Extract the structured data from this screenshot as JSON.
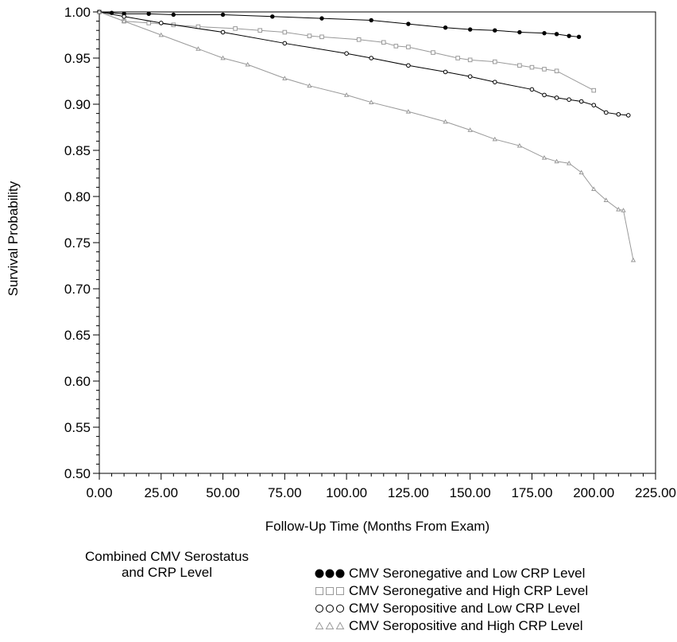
{
  "chart_data": {
    "type": "line",
    "xlabel": "Follow-Up Time (Months From Exam)",
    "ylabel": "Survival Probability",
    "xlim": [
      0,
      225
    ],
    "ylim": [
      0.5,
      1.0
    ],
    "xticks": [
      "0.00",
      "25.00",
      "50.00",
      "75.00",
      "100.00",
      "125.00",
      "150.00",
      "175.00",
      "200.00",
      "225.00"
    ],
    "yticks": [
      "0.50",
      "0.55",
      "0.60",
      "0.65",
      "0.70",
      "0.75",
      "0.80",
      "0.85",
      "0.90",
      "0.95",
      "1.00"
    ],
    "grid": false,
    "legend_title": [
      "Combined CMV Serostatus",
      "and CRP Level"
    ],
    "legend_position": "bottom",
    "series": [
      {
        "name": "CMV Seronegative and Low CRP Level",
        "color": "#000000",
        "marker": "filled-circle",
        "x": [
          0,
          5,
          10,
          20,
          30,
          50,
          70,
          90,
          110,
          125,
          140,
          150,
          160,
          170,
          180,
          185,
          190,
          194
        ],
        "y": [
          1.0,
          0.999,
          0.998,
          0.998,
          0.997,
          0.997,
          0.995,
          0.993,
          0.991,
          0.987,
          0.983,
          0.981,
          0.98,
          0.978,
          0.977,
          0.976,
          0.974,
          0.973
        ]
      },
      {
        "name": "CMV Seronegative and High CRP Level",
        "color": "#999999",
        "marker": "open-square",
        "x": [
          0,
          10,
          20,
          30,
          40,
          55,
          65,
          75,
          85,
          90,
          105,
          115,
          120,
          125,
          135,
          145,
          150,
          160,
          170,
          175,
          180,
          185,
          200
        ],
        "y": [
          1.0,
          0.99,
          0.988,
          0.986,
          0.984,
          0.982,
          0.98,
          0.978,
          0.974,
          0.973,
          0.97,
          0.967,
          0.963,
          0.962,
          0.956,
          0.95,
          0.948,
          0.946,
          0.942,
          0.94,
          0.938,
          0.936,
          0.915
        ]
      },
      {
        "name": "CMV Seropositive and Low CRP Level",
        "color": "#000000",
        "marker": "open-circle",
        "x": [
          0,
          10,
          25,
          50,
          75,
          100,
          110,
          125,
          140,
          150,
          160,
          175,
          180,
          185,
          190,
          195,
          200,
          205,
          210,
          214
        ],
        "y": [
          1.0,
          0.995,
          0.988,
          0.978,
          0.966,
          0.955,
          0.95,
          0.942,
          0.935,
          0.93,
          0.924,
          0.916,
          0.91,
          0.907,
          0.905,
          0.903,
          0.899,
          0.891,
          0.889,
          0.888
        ]
      },
      {
        "name": "CMV Seropositive and High CRP Level",
        "color": "#999999",
        "marker": "open-triangle",
        "x": [
          0,
          10,
          25,
          40,
          50,
          60,
          75,
          85,
          100,
          110,
          125,
          140,
          150,
          160,
          170,
          180,
          185,
          190,
          195,
          200,
          205,
          210,
          212,
          216
        ],
        "y": [
          1.0,
          0.99,
          0.975,
          0.96,
          0.95,
          0.943,
          0.928,
          0.92,
          0.91,
          0.902,
          0.892,
          0.881,
          0.872,
          0.862,
          0.855,
          0.842,
          0.838,
          0.836,
          0.826,
          0.808,
          0.796,
          0.786,
          0.785,
          0.731
        ]
      }
    ]
  }
}
